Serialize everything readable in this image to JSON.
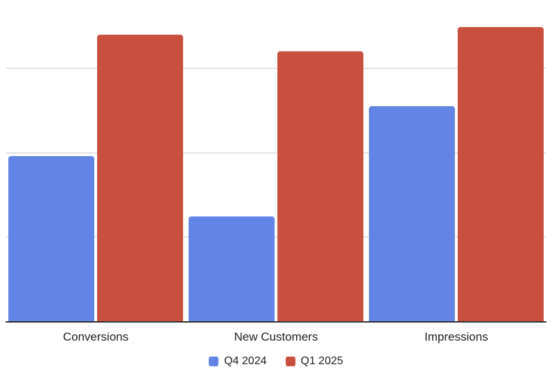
{
  "chart_data": {
    "type": "bar",
    "categories": [
      "Conversions",
      "New Customers",
      "Impressions"
    ],
    "series": [
      {
        "name": "Q4 2024",
        "color": "#6284E7",
        "values": [
          1.96,
          1.25,
          2.56
        ]
      },
      {
        "name": "Q1 2025",
        "color": "#C9503E",
        "values": [
          3.41,
          3.21,
          3.5
        ]
      }
    ],
    "value_unit": "gridline-intervals (y-axis scale labels cropped out of frame)",
    "ylim": [
      0,
      3.82
    ],
    "gridline_values": [
      1,
      2,
      3
    ],
    "grid": "horizontal",
    "yaxis_tick_labels_visible": false,
    "legend_position": "bottom",
    "bar_corner_radius_px": 4
  },
  "colors": {
    "series_q4_2024": "#6284E7",
    "series_q1_2025": "#C9503E",
    "gridline": "#CCCCCC",
    "axis_line": "#333333",
    "label_text": "#1C1C1C",
    "background": "#FFFFFF"
  }
}
